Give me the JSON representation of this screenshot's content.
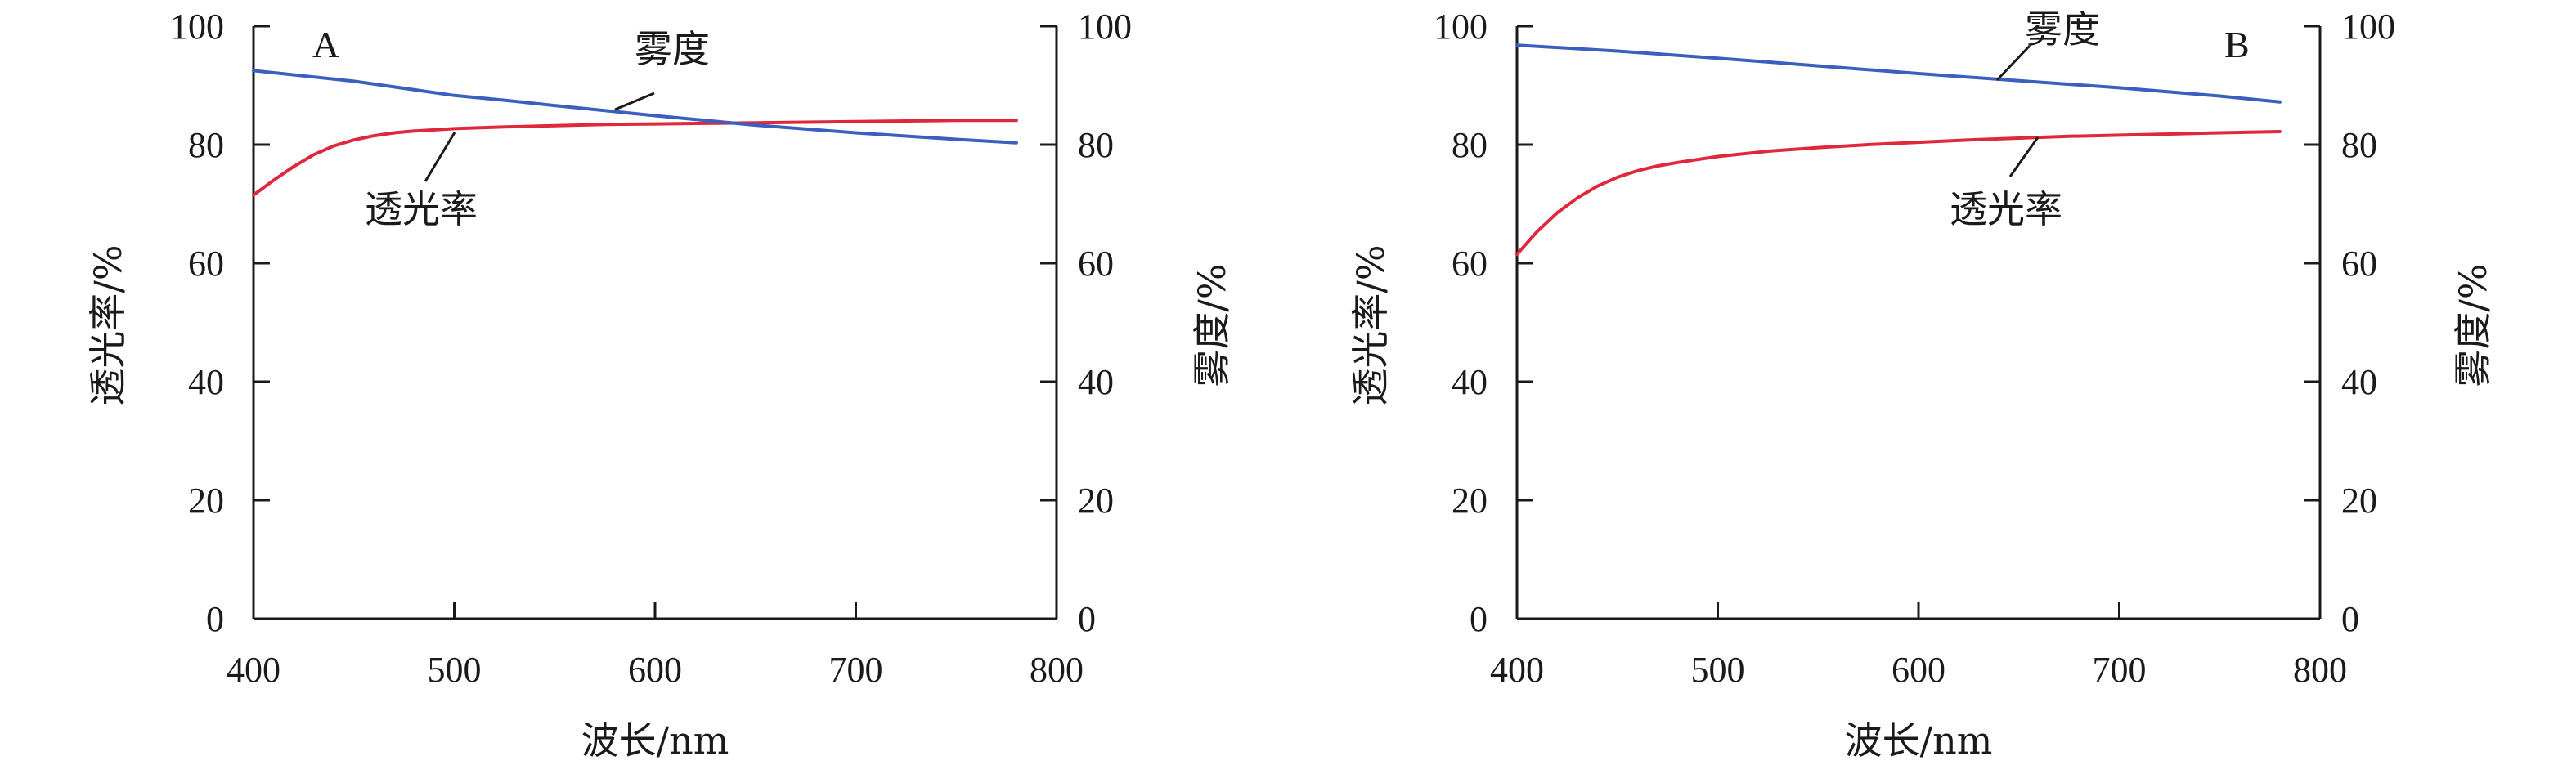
{
  "chart_data": [
    {
      "type": "line",
      "panel_label": "A",
      "xlabel": "波长/nm",
      "ylabel_left": "透光率/%",
      "ylabel_right": "雾度/%",
      "xlim": [
        400,
        800
      ],
      "ylim": [
        0,
        100
      ],
      "y2lim": [
        0,
        100
      ],
      "xticks": [
        "400",
        "500",
        "600",
        "700",
        "800"
      ],
      "yticks": [
        "0",
        "20",
        "40",
        "60",
        "80",
        "100"
      ],
      "y2ticks": [
        "0",
        "20",
        "40",
        "60",
        "80",
        "100"
      ],
      "grid": false,
      "colors": {
        "透光率": "#e0283c",
        "雾度": "#3a5fbf"
      },
      "series": [
        {
          "name": "透光率",
          "axis": "left",
          "x": [
            400,
            410,
            420,
            430,
            440,
            450,
            460,
            470,
            480,
            490,
            500,
            525,
            550,
            575,
            600,
            625,
            650,
            675,
            700,
            725,
            750,
            780
          ],
          "y": [
            71.5,
            74.0,
            76.3,
            78.3,
            79.8,
            80.8,
            81.5,
            82.0,
            82.3,
            82.5,
            82.7,
            83.0,
            83.2,
            83.4,
            83.5,
            83.6,
            83.7,
            83.8,
            83.9,
            84.0,
            84.1,
            84.1
          ]
        },
        {
          "name": "雾度",
          "axis": "right",
          "x": [
            400,
            450,
            500,
            525,
            550,
            600,
            650,
            700,
            750,
            780
          ],
          "y": [
            92.5,
            90.7,
            88.3,
            87.5,
            86.6,
            84.9,
            83.3,
            82.0,
            80.9,
            80.3
          ]
        }
      ],
      "annotations": [
        {
          "text": "雾度",
          "series": "雾度",
          "at_x": 578
        },
        {
          "text": "透光率",
          "series": "透光率",
          "at_x": 500
        }
      ]
    },
    {
      "type": "line",
      "panel_label": "B",
      "xlabel": "波长/nm",
      "ylabel_left": "透光率/%",
      "ylabel_right": "雾度/%",
      "xlim": [
        400,
        800
      ],
      "ylim": [
        0,
        100
      ],
      "y2lim": [
        0,
        100
      ],
      "xticks": [
        "400",
        "500",
        "600",
        "700",
        "800"
      ],
      "yticks": [
        "0",
        "20",
        "40",
        "60",
        "80",
        "100"
      ],
      "y2ticks": [
        "0",
        "20",
        "40",
        "60",
        "80",
        "100"
      ],
      "grid": false,
      "colors": {
        "透光率": "#e0283c",
        "雾度": "#3a5fbf"
      },
      "series": [
        {
          "name": "透光率",
          "axis": "left",
          "x": [
            400,
            410,
            420,
            430,
            440,
            450,
            460,
            470,
            480,
            500,
            525,
            550,
            575,
            600,
            625,
            650,
            675,
            700,
            725,
            750,
            780
          ],
          "y": [
            61.5,
            65.3,
            68.5,
            71.0,
            73.0,
            74.5,
            75.6,
            76.4,
            77.0,
            78.0,
            78.9,
            79.5,
            80.0,
            80.4,
            80.8,
            81.1,
            81.4,
            81.6,
            81.8,
            82.0,
            82.2
          ]
        },
        {
          "name": "雾度",
          "axis": "right",
          "x": [
            400,
            450,
            500,
            550,
            600,
            650,
            700,
            750,
            780
          ],
          "y": [
            96.8,
            95.8,
            94.6,
            93.3,
            92.0,
            90.8,
            89.6,
            88.2,
            87.2
          ]
        }
      ],
      "annotations": [
        {
          "text": "雾度",
          "series": "雾度",
          "at_x": 645
        },
        {
          "text": "透光率",
          "series": "透光率",
          "at_x": 660
        }
      ]
    }
  ]
}
